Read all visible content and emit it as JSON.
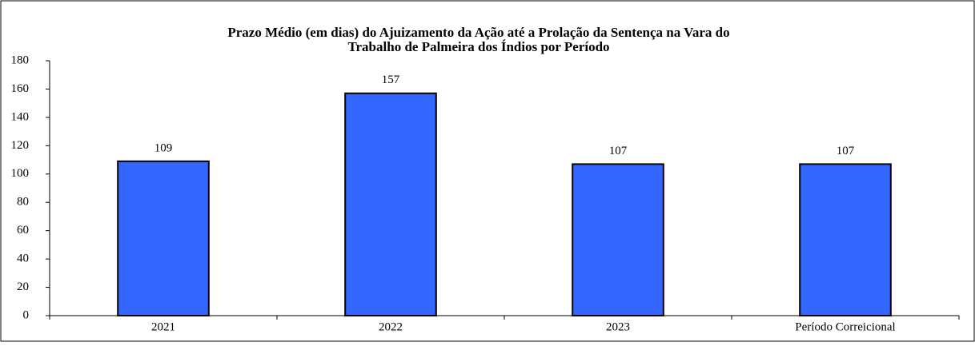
{
  "chart_data": {
    "type": "bar",
    "title": "Prazo Médio (em dias) do Ajuizamento da Ação até a Prolação da Sentença na Vara do Trabalho de Palmeira dos Índios por Período",
    "categories": [
      "2021",
      "2022",
      "2023",
      "Período Correicional"
    ],
    "values": [
      109,
      157,
      107,
      107
    ],
    "color": "#3366ff",
    "ylim": [
      0,
      180
    ],
    "yticks": [
      0,
      20,
      40,
      60,
      80,
      100,
      120,
      140,
      160,
      180
    ],
    "grid": false
  }
}
